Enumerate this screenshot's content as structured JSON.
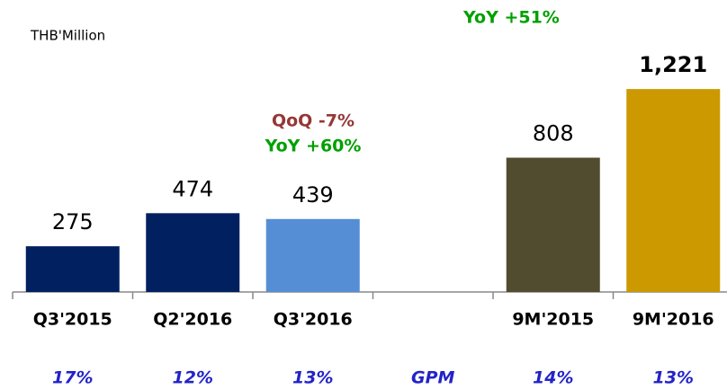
{
  "chart_data": {
    "type": "bar",
    "unit_label": "THB'Million",
    "categories": [
      "Q3'2015",
      "Q2'2016",
      "Q3'2016",
      null,
      "9M'2015",
      "9M'2016"
    ],
    "values": [
      275,
      474,
      439,
      null,
      808,
      1221
    ],
    "value_labels": [
      "275",
      "474",
      "439",
      null,
      "808",
      "1,221"
    ],
    "colors": [
      "#002060",
      "#002060",
      "#558ed5",
      null,
      "#514b2f",
      "#cc9900"
    ],
    "gpm_labels": [
      "17%",
      "12%",
      "13%",
      "GPM",
      "14%",
      "13%"
    ],
    "annotations": [
      "QoQ -7%",
      "YoY +60%",
      "YoY +51%"
    ]
  }
}
